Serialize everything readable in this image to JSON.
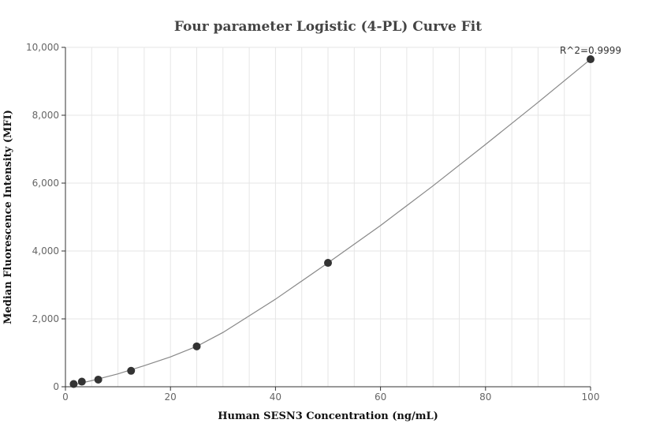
{
  "chart_data": {
    "type": "scatter",
    "title": "Four parameter Logistic (4-PL) Curve Fit",
    "xlabel": "Human SESN3 Concentration (ng/mL)",
    "ylabel": "Median Fluorescence Intensity (MFI)",
    "xlim": [
      0,
      100
    ],
    "ylim": [
      0,
      10000
    ],
    "x_ticks": [
      0,
      20,
      40,
      60,
      80,
      100
    ],
    "x_tick_labels": [
      "0",
      "20",
      "40",
      "60",
      "80",
      "100"
    ],
    "y_ticks": [
      0,
      2000,
      4000,
      6000,
      8000,
      10000
    ],
    "y_tick_labels": [
      "0",
      "2,000",
      "4,000",
      "6,000",
      "8,000",
      "10,000"
    ],
    "grid": true,
    "series": [
      {
        "points": [
          {
            "x": 1.5625,
            "y": 80
          },
          {
            "x": 3.125,
            "y": 150
          },
          {
            "x": 6.25,
            "y": 210
          },
          {
            "x": 12.5,
            "y": 470
          },
          {
            "x": 25,
            "y": 1190
          },
          {
            "x": 50,
            "y": 3650
          },
          {
            "x": 100,
            "y": 9650
          }
        ],
        "marker_color": "#333333"
      }
    ],
    "fit_curve": {
      "model": "4-PL",
      "line_color": "#888888",
      "points": [
        {
          "x": 1.5625,
          "y": 60
        },
        {
          "x": 5,
          "y": 180
        },
        {
          "x": 10,
          "y": 380
        },
        {
          "x": 15,
          "y": 620
        },
        {
          "x": 20,
          "y": 880
        },
        {
          "x": 25,
          "y": 1190
        },
        {
          "x": 30,
          "y": 1600
        },
        {
          "x": 40,
          "y": 2580
        },
        {
          "x": 50,
          "y": 3650
        },
        {
          "x": 60,
          "y": 4750
        },
        {
          "x": 70,
          "y": 5920
        },
        {
          "x": 80,
          "y": 7140
        },
        {
          "x": 90,
          "y": 8380
        },
        {
          "x": 100,
          "y": 9650
        }
      ]
    },
    "annotation": {
      "text": "R^2=0.9999",
      "x": 100,
      "y": 9650
    },
    "colors": {
      "axis": "#333333",
      "grid": "#e6e6e6",
      "fit": "#888888",
      "marker": "#333333"
    }
  }
}
